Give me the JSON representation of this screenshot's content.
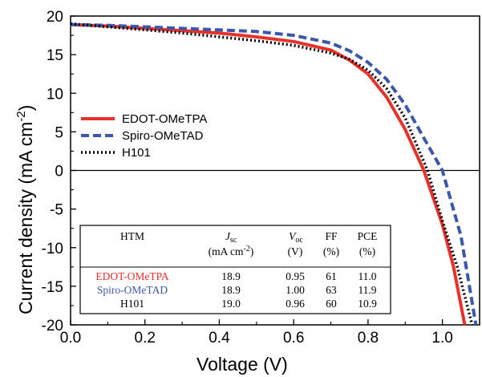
{
  "chart_data": {
    "type": "line",
    "xlabel": "Voltage (V)",
    "ylabel": "Current density (mA cm",
    "ylabel_sup": "-2",
    "ylabel_end": ")",
    "xlim": [
      0.0,
      1.1
    ],
    "ylim": [
      -20,
      20
    ],
    "xticks": [
      0.0,
      0.2,
      0.4,
      0.6,
      0.8,
      1.0
    ],
    "xtick_labels": [
      "0.0",
      "0.2",
      "0.4",
      "0.6",
      "0.8",
      "1.0"
    ],
    "yticks": [
      -20,
      -15,
      -10,
      -5,
      0,
      5,
      10,
      15,
      20
    ],
    "ytick_labels": [
      "-20",
      "-15",
      "-10",
      "-5",
      "0",
      "5",
      "10",
      "15",
      "20"
    ],
    "zero_line": true,
    "grid": false,
    "legend_position": "middle-left",
    "series": [
      {
        "name": "EDOT-OMeTPA",
        "color": "#e8312a",
        "style": "solid",
        "x": [
          0.0,
          0.1,
          0.2,
          0.3,
          0.4,
          0.5,
          0.6,
          0.7,
          0.75,
          0.8,
          0.85,
          0.9,
          0.95,
          1.0,
          1.03,
          1.06
        ],
        "y": [
          18.9,
          18.7,
          18.4,
          18.1,
          17.8,
          17.3,
          16.7,
          15.6,
          14.3,
          12.5,
          9.5,
          5.3,
          0.0,
          -7.0,
          -12.5,
          -20.0
        ]
      },
      {
        "name": "Spiro-OMeTAD",
        "color": "#3b57a8",
        "style": "dashed",
        "x": [
          0.0,
          0.1,
          0.2,
          0.3,
          0.4,
          0.5,
          0.6,
          0.7,
          0.75,
          0.8,
          0.85,
          0.9,
          0.95,
          1.0,
          1.05,
          1.09
        ],
        "y": [
          18.9,
          18.8,
          18.6,
          18.4,
          18.2,
          18.0,
          17.5,
          16.5,
          15.5,
          14.0,
          11.8,
          8.5,
          4.2,
          0.0,
          -8.5,
          -20.0
        ]
      },
      {
        "name": "H101",
        "color": "#000000",
        "style": "dotted",
        "x": [
          0.0,
          0.1,
          0.2,
          0.3,
          0.4,
          0.5,
          0.6,
          0.7,
          0.75,
          0.8,
          0.85,
          0.9,
          0.96,
          1.0,
          1.04,
          1.08
        ],
        "y": [
          19.0,
          18.6,
          18.2,
          17.8,
          17.3,
          16.8,
          16.2,
          15.2,
          14.4,
          13.0,
          10.6,
          6.8,
          0.0,
          -6.5,
          -12.5,
          -20.0
        ]
      }
    ],
    "table": {
      "headers": [
        {
          "main": "HTM",
          "sub": ""
        },
        {
          "main": "J",
          "main_sub": "sc",
          "sub": "(mA cm",
          "sub_sup": "-2",
          "sub_end": ")"
        },
        {
          "main": "V",
          "main_sub": "oc",
          "sub": "(V)"
        },
        {
          "main": "FF",
          "sub": "(%)"
        },
        {
          "main": "PCE",
          "sub": "(%)"
        }
      ],
      "rows": [
        {
          "htm": "EDOT-OMeTPA",
          "color": "#e8312a",
          "jsc": "18.9",
          "voc": "0.95",
          "ff": "61",
          "pce": "11.0"
        },
        {
          "htm": "Spiro-OMeTAD",
          "color": "#3b57a8",
          "jsc": "18.9",
          "voc": "1.00",
          "ff": "63",
          "pce": "11.9"
        },
        {
          "htm": "H101",
          "color": "#000000",
          "jsc": "19.0",
          "voc": "0.96",
          "ff": "60",
          "pce": "10.9"
        }
      ]
    }
  }
}
